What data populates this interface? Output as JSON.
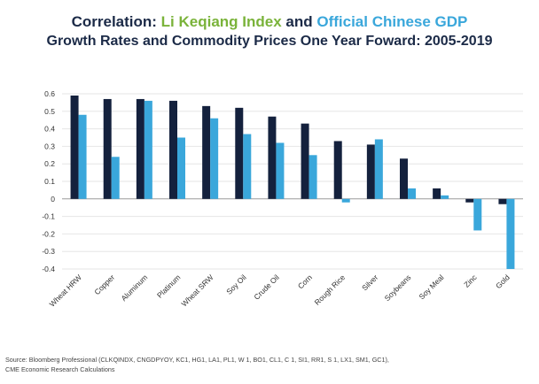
{
  "title": {
    "line1_prefix": "Correlation: ",
    "line1_series1": "Li Keqiang Index",
    "line1_mid": " and ",
    "line1_series2": "Official Chinese GDP",
    "line2": "Growth Rates and Commodity Prices One Year Foward: 2005-2019"
  },
  "colors": {
    "series1": "#14213d",
    "series2": "#3aa7db",
    "title_accent1": "#7ab33a",
    "title_accent2": "#3aa7db",
    "grid": "#e6e6e6",
    "zero_line": "#9a9a9a"
  },
  "chart_data": {
    "type": "bar",
    "categories": [
      "Wheat HRW",
      "Copper",
      "Aluminum",
      "Platinum",
      "Wheat SRW",
      "Soy Oil",
      "Crude Oil",
      "Corn",
      "Rough Rice",
      "Silver",
      "Soybeans",
      "Soy Meal",
      "Zinc",
      "Gold"
    ],
    "series": [
      {
        "values": [
          0.59,
          0.57,
          0.57,
          0.56,
          0.53,
          0.52,
          0.47,
          0.43,
          0.33,
          0.31,
          0.23,
          0.06,
          -0.02,
          -0.03
        ]
      },
      {
        "values": [
          0.48,
          0.24,
          0.56,
          0.35,
          0.46,
          0.37,
          0.32,
          0.25,
          -0.02,
          0.34,
          0.06,
          0.02,
          -0.18,
          -0.4
        ]
      }
    ],
    "ylim": [
      -0.4,
      0.6
    ],
    "yticks": [
      "0.6",
      "0.5",
      "0.4",
      "0.3",
      "0.2",
      "0.1",
      "0",
      "-0.1",
      "-0.2",
      "-0.3",
      "-0.4"
    ],
    "grid": true,
    "legend": "none"
  },
  "source": {
    "line1": "Source: Bloomberg Professional (CLKQINDX, CNGDPYOY, KC1, HG1, LA1, PL1, W 1, BO1, CL1, C 1, SI1, RR1, S 1, LX1, SM1, GC1),",
    "line2": "CME Economic Research Calculations"
  }
}
